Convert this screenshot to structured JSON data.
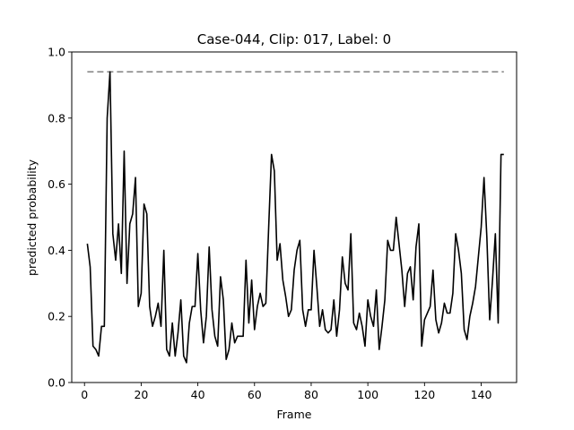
{
  "chart_data": {
    "type": "line",
    "title": "Case-044, Clip: 017, Label: 0",
    "xlabel": "Frame",
    "ylabel": "predicted probability",
    "xlim": [
      -4.5,
      152.5
    ],
    "ylim": [
      0.0,
      1.0
    ],
    "xticks": [
      0,
      20,
      40,
      60,
      80,
      100,
      120,
      140
    ],
    "yticks": [
      0.0,
      0.2,
      0.4,
      0.6,
      0.8,
      1.0
    ],
    "xtick_labels": [
      "0",
      "20",
      "40",
      "60",
      "80",
      "100",
      "120",
      "140"
    ],
    "ytick_labels": [
      "0.0",
      "0.2",
      "0.4",
      "0.6",
      "0.8",
      "1.0"
    ],
    "grid": false,
    "colors": {
      "series": "#000000",
      "reference": "#808080",
      "frame": "#000000"
    },
    "reference_line": {
      "y": 0.94,
      "x_start": 1,
      "x_end": 148,
      "style": "dashed"
    },
    "series": [
      {
        "name": "predicted probability",
        "x": [
          1,
          2,
          3,
          4,
          5,
          6,
          7,
          8,
          9,
          10,
          11,
          12,
          13,
          14,
          15,
          16,
          17,
          18,
          19,
          20,
          21,
          22,
          23,
          24,
          25,
          26,
          27,
          28,
          29,
          30,
          31,
          32,
          33,
          34,
          35,
          36,
          37,
          38,
          39,
          40,
          41,
          42,
          43,
          44,
          45,
          46,
          47,
          48,
          49,
          50,
          51,
          52,
          53,
          54,
          55,
          56,
          57,
          58,
          59,
          60,
          61,
          62,
          63,
          64,
          65,
          66,
          67,
          68,
          69,
          70,
          71,
          72,
          73,
          74,
          75,
          76,
          77,
          78,
          79,
          80,
          81,
          82,
          83,
          84,
          85,
          86,
          87,
          88,
          89,
          90,
          91,
          92,
          93,
          94,
          95,
          96,
          97,
          98,
          99,
          100,
          101,
          102,
          103,
          104,
          105,
          106,
          107,
          108,
          109,
          110,
          111,
          112,
          113,
          114,
          115,
          116,
          117,
          118,
          119,
          120,
          121,
          122,
          123,
          124,
          125,
          126,
          127,
          128,
          129,
          130,
          131,
          132,
          133,
          134,
          135,
          136,
          137,
          138,
          139,
          140,
          141,
          142,
          143,
          144,
          145,
          146,
          147,
          148
        ],
        "values": [
          0.42,
          0.35,
          0.11,
          0.1,
          0.08,
          0.17,
          0.17,
          0.8,
          0.94,
          0.45,
          0.37,
          0.48,
          0.33,
          0.7,
          0.3,
          0.48,
          0.51,
          0.62,
          0.23,
          0.27,
          0.54,
          0.51,
          0.23,
          0.17,
          0.2,
          0.24,
          0.17,
          0.4,
          0.1,
          0.08,
          0.18,
          0.08,
          0.15,
          0.25,
          0.08,
          0.06,
          0.18,
          0.23,
          0.23,
          0.39,
          0.22,
          0.12,
          0.2,
          0.41,
          0.22,
          0.14,
          0.11,
          0.32,
          0.25,
          0.07,
          0.1,
          0.18,
          0.12,
          0.14,
          0.14,
          0.14,
          0.37,
          0.18,
          0.31,
          0.16,
          0.23,
          0.27,
          0.23,
          0.24,
          0.47,
          0.69,
          0.64,
          0.37,
          0.42,
          0.31,
          0.26,
          0.2,
          0.22,
          0.34,
          0.4,
          0.43,
          0.22,
          0.17,
          0.22,
          0.22,
          0.4,
          0.29,
          0.17,
          0.22,
          0.16,
          0.15,
          0.16,
          0.25,
          0.14,
          0.22,
          0.38,
          0.3,
          0.28,
          0.45,
          0.18,
          0.16,
          0.21,
          0.17,
          0.11,
          0.25,
          0.2,
          0.17,
          0.28,
          0.1,
          0.17,
          0.25,
          0.43,
          0.4,
          0.4,
          0.5,
          0.42,
          0.34,
          0.23,
          0.33,
          0.35,
          0.25,
          0.41,
          0.48,
          0.11,
          0.19,
          0.21,
          0.23,
          0.34,
          0.19,
          0.15,
          0.18,
          0.24,
          0.21,
          0.21,
          0.27,
          0.45,
          0.4,
          0.33,
          0.16,
          0.13,
          0.2,
          0.24,
          0.29,
          0.38,
          0.47,
          0.62,
          0.44,
          0.19,
          0.31,
          0.45,
          0.18,
          0.69,
          0.69
        ]
      }
    ]
  }
}
